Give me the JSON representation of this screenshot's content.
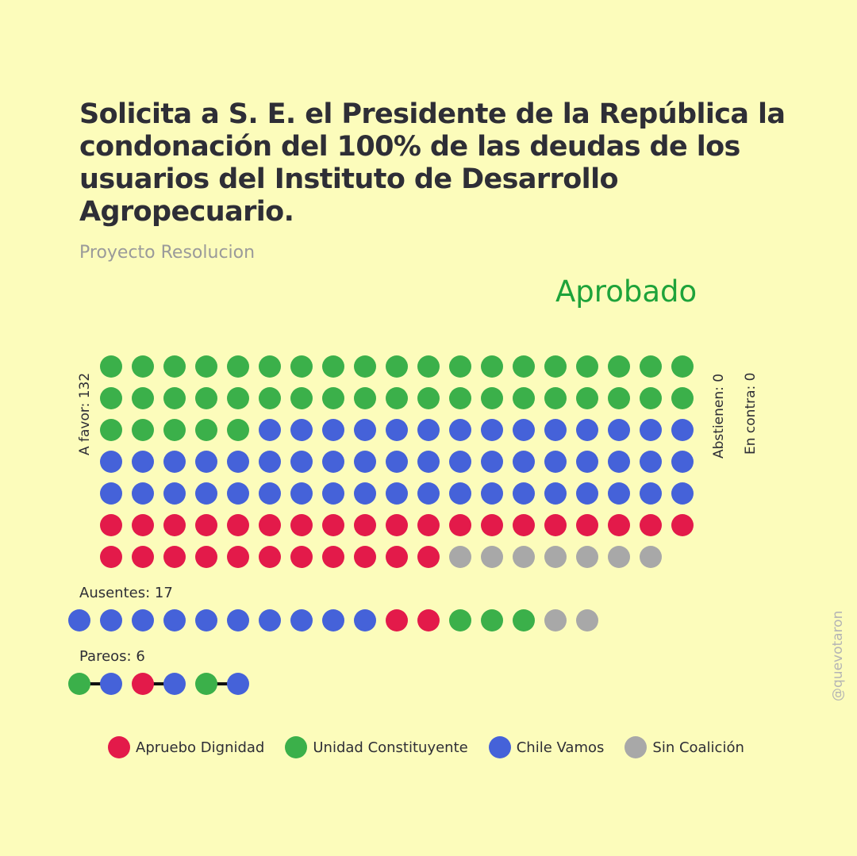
{
  "header": {
    "title": "Solicita a S. E. el Presidente de la República la condonación del 100% de las deudas de los usuarios del Instituto de Desarrollo Agropecuario.",
    "subtitle": "Proyecto Resolucion",
    "result": "Aprobado"
  },
  "labels": {
    "a_favor": "A favor: 132",
    "abstienen": "Abstienen: 0",
    "en_contra": "En contra: 0",
    "ausentes": "Ausentes: 17",
    "pareos": "Pareos: 6"
  },
  "credit": "@quevotaron",
  "colors": {
    "apruebo_dignidad": "#e31a4a",
    "unidad_constituyente": "#3bb04a",
    "chile_vamos": "#4562d9",
    "sin_coalicion": "#a8a8a8",
    "pair_line": "#111111"
  },
  "chart_data": {
    "type": "waffle",
    "title": "Solicita a S. E. el Presidente de la República la condonación del 100% de las deudas de los usuarios del Instituto de Desarrollo Agropecuario.",
    "legend": [
      {
        "key": "apruebo_dignidad",
        "label": "Apruebo Dignidad"
      },
      {
        "key": "unidad_constituyente",
        "label": "Unidad Constituyente"
      },
      {
        "key": "chile_vamos",
        "label": "Chile Vamos"
      },
      {
        "key": "sin_coalicion",
        "label": "Sin Coalición"
      }
    ],
    "groups": [
      {
        "name": "A favor",
        "count": 132,
        "by_coalition": {
          "unidad_constituyente": 43,
          "chile_vamos": 52,
          "apruebo_dignidad": 30,
          "sin_coalicion": 7
        }
      },
      {
        "name": "Abstienen",
        "count": 0,
        "by_coalition": {}
      },
      {
        "name": "En contra",
        "count": 0,
        "by_coalition": {}
      },
      {
        "name": "Ausentes",
        "count": 17,
        "sequence": [
          "chile_vamos",
          "chile_vamos",
          "chile_vamos",
          "chile_vamos",
          "chile_vamos",
          "chile_vamos",
          "chile_vamos",
          "chile_vamos",
          "chile_vamos",
          "chile_vamos",
          "apruebo_dignidad",
          "apruebo_dignidad",
          "unidad_constituyente",
          "unidad_constituyente",
          "unidad_constituyente",
          "sin_coalicion",
          "sin_coalicion"
        ]
      },
      {
        "name": "Pareos",
        "count": 6,
        "pairs": [
          [
            "unidad_constituyente",
            "chile_vamos"
          ],
          [
            "apruebo_dignidad",
            "chile_vamos"
          ],
          [
            "unidad_constituyente",
            "chile_vamos"
          ]
        ]
      }
    ]
  }
}
